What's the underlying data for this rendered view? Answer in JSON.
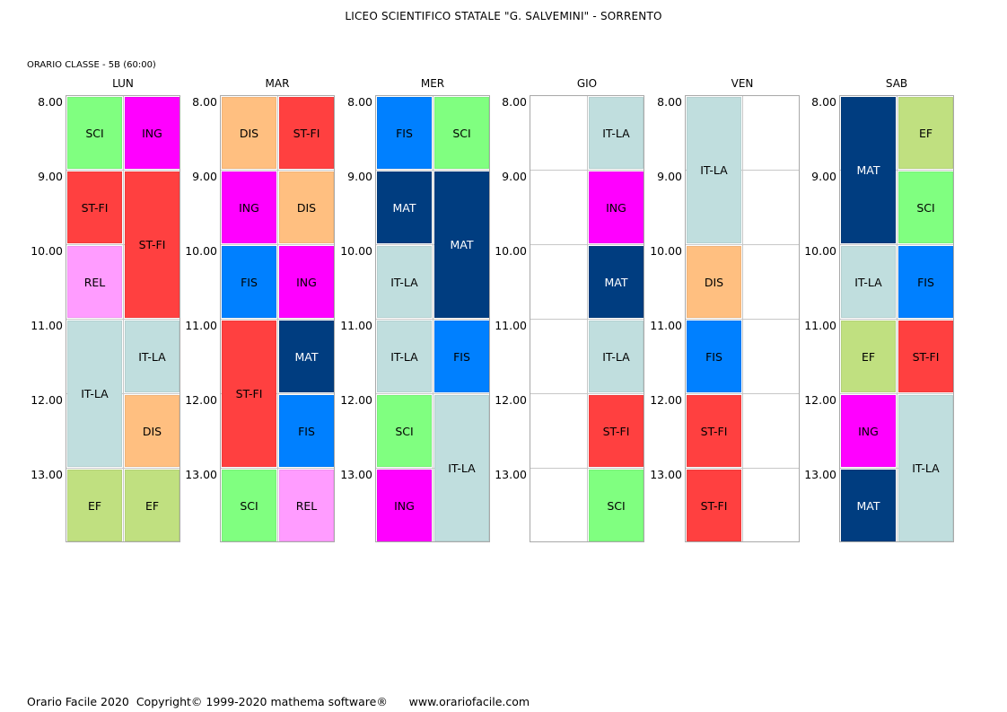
{
  "header": {
    "school_title": "LICEO SCIENTIFICO STATALE \"G. SALVEMINI\" - SORRENTO",
    "class_label": "ORARIO CLASSE   -   5B  (60:00)"
  },
  "footer": {
    "text": "Orario Facile 2020  Copyright© 1999-2020 mathema software®      www.orariofacile.com"
  },
  "times": [
    "8.00",
    "9.00",
    "10.00",
    "11.00",
    "12.00",
    "13.00"
  ],
  "subject_colors": {
    "SCI": "#80ff80",
    "ING": "#ff00ff",
    "ST-FI": "#ff4040",
    "REL": "#ff9cff",
    "IT-LA": "#c0dede",
    "DIS": "#ffbf80",
    "EF": "#c0e080",
    "FIS": "#0080ff",
    "MAT": "#003d80"
  },
  "dark_subjects": [
    "MAT"
  ],
  "days": [
    {
      "name": "LUN",
      "lessons": [
        {
          "subject": "SCI",
          "col": 0,
          "start": 0,
          "span": 1
        },
        {
          "subject": "ING",
          "col": 1,
          "start": 0,
          "span": 1
        },
        {
          "subject": "ST-FI",
          "col": 0,
          "start": 1,
          "span": 1
        },
        {
          "subject": "ST-FI",
          "col": 1,
          "start": 1,
          "span": 2
        },
        {
          "subject": "REL",
          "col": 0,
          "start": 2,
          "span": 1
        },
        {
          "subject": "IT-LA",
          "col": 0,
          "start": 3,
          "span": 2
        },
        {
          "subject": "IT-LA",
          "col": 1,
          "start": 3,
          "span": 1
        },
        {
          "subject": "DIS",
          "col": 1,
          "start": 4,
          "span": 1
        },
        {
          "subject": "EF",
          "col": 0,
          "start": 5,
          "span": 1
        },
        {
          "subject": "EF",
          "col": 1,
          "start": 5,
          "span": 1
        }
      ]
    },
    {
      "name": "MAR",
      "lessons": [
        {
          "subject": "DIS",
          "col": 0,
          "start": 0,
          "span": 1
        },
        {
          "subject": "ST-FI",
          "col": 1,
          "start": 0,
          "span": 1
        },
        {
          "subject": "ING",
          "col": 0,
          "start": 1,
          "span": 1
        },
        {
          "subject": "DIS",
          "col": 1,
          "start": 1,
          "span": 1
        },
        {
          "subject": "FIS",
          "col": 0,
          "start": 2,
          "span": 1
        },
        {
          "subject": "ING",
          "col": 1,
          "start": 2,
          "span": 1
        },
        {
          "subject": "ST-FI",
          "col": 0,
          "start": 3,
          "span": 2
        },
        {
          "subject": "MAT",
          "col": 1,
          "start": 3,
          "span": 1
        },
        {
          "subject": "FIS",
          "col": 1,
          "start": 4,
          "span": 1
        },
        {
          "subject": "SCI",
          "col": 0,
          "start": 5,
          "span": 1
        },
        {
          "subject": "REL",
          "col": 1,
          "start": 5,
          "span": 1
        }
      ]
    },
    {
      "name": "MER",
      "lessons": [
        {
          "subject": "FIS",
          "col": 0,
          "start": 0,
          "span": 1
        },
        {
          "subject": "SCI",
          "col": 1,
          "start": 0,
          "span": 1
        },
        {
          "subject": "MAT",
          "col": 0,
          "start": 1,
          "span": 1
        },
        {
          "subject": "MAT",
          "col": 1,
          "start": 1,
          "span": 2
        },
        {
          "subject": "IT-LA",
          "col": 0,
          "start": 2,
          "span": 1
        },
        {
          "subject": "IT-LA",
          "col": 0,
          "start": 3,
          "span": 1
        },
        {
          "subject": "FIS",
          "col": 1,
          "start": 3,
          "span": 1
        },
        {
          "subject": "SCI",
          "col": 0,
          "start": 4,
          "span": 1
        },
        {
          "subject": "IT-LA",
          "col": 1,
          "start": 4,
          "span": 2
        },
        {
          "subject": "ING",
          "col": 0,
          "start": 5,
          "span": 1
        }
      ]
    },
    {
      "name": "GIO",
      "lessons": [
        {
          "subject": "IT-LA",
          "col": 1,
          "start": 0,
          "span": 1
        },
        {
          "subject": "ING",
          "col": 1,
          "start": 1,
          "span": 1
        },
        {
          "subject": "MAT",
          "col": 1,
          "start": 2,
          "span": 1
        },
        {
          "subject": "IT-LA",
          "col": 1,
          "start": 3,
          "span": 1
        },
        {
          "subject": "ST-FI",
          "col": 1,
          "start": 4,
          "span": 1
        },
        {
          "subject": "SCI",
          "col": 1,
          "start": 5,
          "span": 1
        }
      ]
    },
    {
      "name": "VEN",
      "lessons": [
        {
          "subject": "IT-LA",
          "col": 0,
          "start": 0,
          "span": 2
        },
        {
          "subject": "DIS",
          "col": 0,
          "start": 2,
          "span": 1
        },
        {
          "subject": "FIS",
          "col": 0,
          "start": 3,
          "span": 1
        },
        {
          "subject": "ST-FI",
          "col": 0,
          "start": 4,
          "span": 1
        },
        {
          "subject": "ST-FI",
          "col": 0,
          "start": 5,
          "span": 1
        }
      ]
    },
    {
      "name": "SAB",
      "lessons": [
        {
          "subject": "MAT",
          "col": 0,
          "start": 0,
          "span": 2
        },
        {
          "subject": "EF",
          "col": 1,
          "start": 0,
          "span": 1
        },
        {
          "subject": "SCI",
          "col": 1,
          "start": 1,
          "span": 1
        },
        {
          "subject": "IT-LA",
          "col": 0,
          "start": 2,
          "span": 1
        },
        {
          "subject": "FIS",
          "col": 1,
          "start": 2,
          "span": 1
        },
        {
          "subject": "EF",
          "col": 0,
          "start": 3,
          "span": 1
        },
        {
          "subject": "ST-FI",
          "col": 1,
          "start": 3,
          "span": 1
        },
        {
          "subject": "ING",
          "col": 0,
          "start": 4,
          "span": 1
        },
        {
          "subject": "IT-LA",
          "col": 1,
          "start": 4,
          "span": 2
        },
        {
          "subject": "MAT",
          "col": 0,
          "start": 5,
          "span": 1
        }
      ]
    }
  ]
}
